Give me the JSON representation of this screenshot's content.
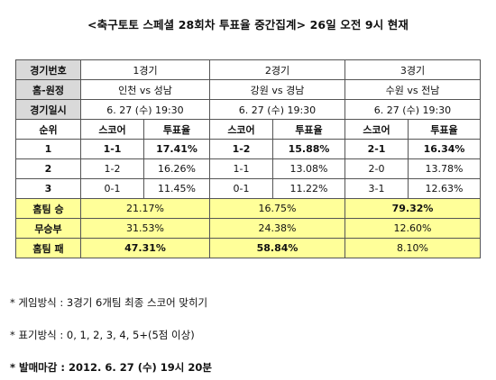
{
  "title": "<축구토토 스페셜 28회차 투표율 중간집계> 26일 오전 9시 현재",
  "row_labels": {
    "game_no": "경기번호",
    "home_away": "홈-원정",
    "game_date": "경기일시",
    "rank": "순위",
    "home_win": "홈팀 승",
    "draw": "무승부",
    "home_loss": "홈팀 패"
  },
  "sub_headers": {
    "score": "스코어",
    "vote_rate": "투표율"
  },
  "games": [
    {
      "number": "1경기",
      "matchup": "인천 vs 성남",
      "datetime": "6. 27 (수) 19:30",
      "rows": [
        {
          "rank": "1",
          "score": "1-1",
          "rate": "17.41%"
        },
        {
          "rank": "2",
          "score": "1-2",
          "rate": "16.26%"
        },
        {
          "rank": "3",
          "score": "0-1",
          "rate": "11.45%"
        }
      ],
      "home_win": "21.17%",
      "draw": "31.53%",
      "home_loss": "47.31%"
    },
    {
      "number": "2경기",
      "matchup": "강원 vs 경남",
      "datetime": "6. 27 (수) 19:30",
      "rows": [
        {
          "rank": "1",
          "score": "1-2",
          "rate": "15.88%"
        },
        {
          "rank": "2",
          "score": "1-1",
          "rate": "13.08%"
        },
        {
          "rank": "3",
          "score": "0-1",
          "rate": "11.22%"
        }
      ],
      "home_win": "16.75%",
      "draw": "24.38%",
      "home_loss": "58.84%"
    },
    {
      "number": "3경기",
      "matchup": "수원 vs 전남",
      "datetime": "6. 27 (수) 19:30",
      "rows": [
        {
          "rank": "1",
          "score": "2-1",
          "rate": "16.34%"
        },
        {
          "rank": "2",
          "score": "2-0",
          "rate": "13.78%"
        },
        {
          "rank": "3",
          "score": "3-1",
          "rate": "12.63%"
        }
      ],
      "home_win": "79.32%",
      "draw": "12.60%",
      "home_loss": "8.10%"
    }
  ],
  "notes": {
    "method": "* 게임방식 : 3경기 6개팀 최종 스코어 맞히기",
    "notation": "* 표기방식 : 0, 1, 2, 3, 4, 5+(5점 이상)",
    "deadline": "* 발매마감 : 2012. 6. 27 (수) 19시 20분"
  },
  "colors": {
    "header_bg": "#d9d9d9",
    "highlight_bg": "#ffff99",
    "border": "#555555"
  }
}
